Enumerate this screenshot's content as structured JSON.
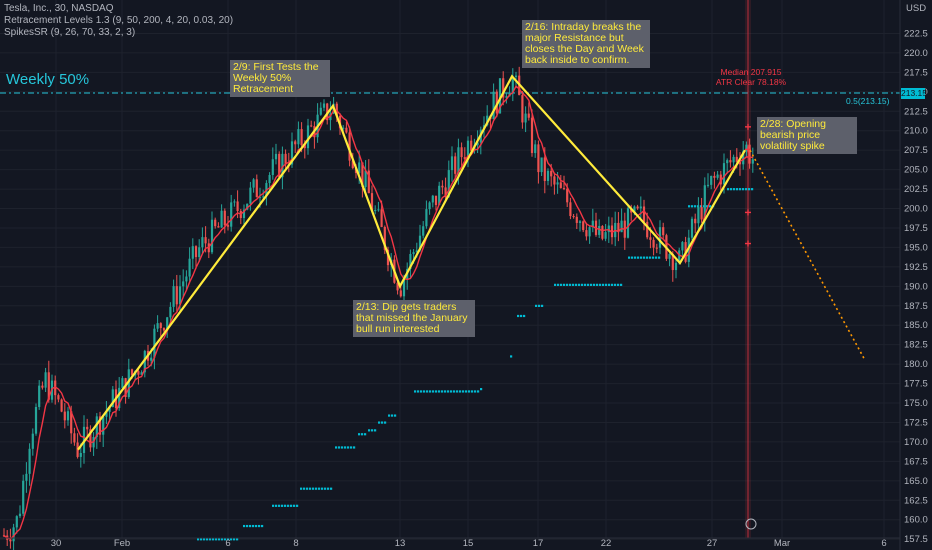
{
  "legend": {
    "symbol": "Tesla, Inc., 30, NASDAQ",
    "indicator1": "Retracement Levels 1.3 (9, 50, 200, 4, 20, 0.03, 20)",
    "indicator2": "SpikesSR (9, 26, 70, 33, 2, 3)"
  },
  "currency": "USD",
  "weekly_label": "Weekly 50%",
  "fib_label": "0.5(213.15)",
  "price_tag": "213.15",
  "median_lines": [
    "Median 207.915",
    "ATR Clear 78.18%"
  ],
  "notes": [
    {
      "lines": [
        "2/9: First Tests the",
        "Weekly 50%",
        "Retracement"
      ]
    },
    {
      "lines": [
        "2/16: Intraday breaks the",
        "major Resistance but",
        "closes the Day and Week",
        "back inside to confirm."
      ]
    },
    {
      "lines": [
        "2/13: Dip gets traders",
        "that missed the January",
        "bull run interested"
      ]
    },
    {
      "lines": [
        "2/28: Opening",
        "bearish price",
        "volatility spike"
      ]
    }
  ],
  "colors": {
    "background": "#131722",
    "up": "#26a69a",
    "down": "#ef5350",
    "zigzag": "#ffeb3b",
    "weekly_line": "#26c6da",
    "ma": "#f23645",
    "sr_dots": "#00bcd4",
    "projection": "#ff9800"
  },
  "chart_data": {
    "type": "candlestick",
    "yaxis": {
      "ticks": [
        157.5,
        160,
        162.5,
        165,
        167.5,
        170,
        172.5,
        175,
        177.5,
        180,
        182.5,
        185,
        187.5,
        190,
        192.5,
        195,
        197.5,
        200,
        202.5,
        205,
        207.5,
        210,
        212.5,
        215,
        217.5,
        220,
        222.5
      ]
    },
    "xaxis": {
      "ticks": [
        "30",
        "Feb",
        "6",
        "8",
        "13",
        "15",
        "17",
        "22",
        "27",
        "Mar",
        "6"
      ]
    },
    "weekly_50_level": 213.15,
    "zigzag_days": [
      {
        "date": "2/1",
        "price": 169
      },
      {
        "date": "2/9",
        "price": 213.2
      },
      {
        "date": "2/13",
        "price": 190
      },
      {
        "date": "2/16",
        "price": 217
      },
      {
        "date": "2/23",
        "price": 193
      },
      {
        "date": "2/27",
        "price": 207.5
      }
    ],
    "projection": [
      {
        "price": 207.5
      },
      {
        "price": 180.5
      }
    ]
  }
}
